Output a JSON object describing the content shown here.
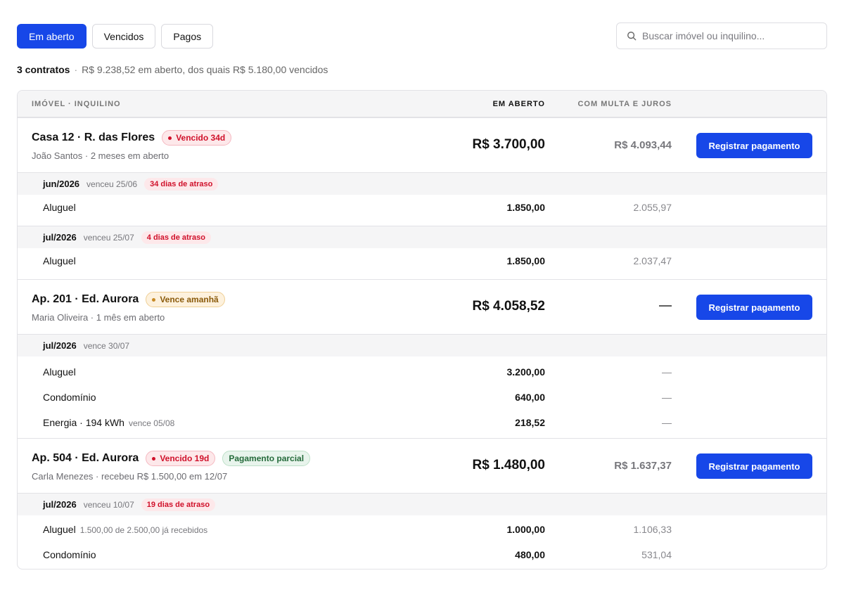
{
  "tabs": [
    {
      "label": "Em aberto",
      "active": true
    },
    {
      "label": "Vencidos",
      "active": false
    },
    {
      "label": "Pagos",
      "active": false
    }
  ],
  "search": {
    "placeholder": "Buscar imóvel ou inquilino...",
    "icon": "search-icon"
  },
  "summary": {
    "count": "3 contratos",
    "separator": "·",
    "text": "R$ 9.238,52 em aberto, dos quais R$ 5.180,00 vencidos"
  },
  "table": {
    "headers": {
      "imovel": "IMÓVEL · INQUILINO",
      "aberto": "EM ABERTO",
      "multa": "COM MULTA E JUROS"
    },
    "contracts": [
      {
        "name": "Casa 12 · R. das Flores",
        "badges": [
          "Vencido 34d"
        ],
        "subtitle": "João Santos · 2 meses em aberto",
        "amount": "R$ 3.700,00",
        "multa": "R$ 4.093,44",
        "button": "Registrar pagamento",
        "periods": [
          {
            "month": "jun/2026",
            "due": "venceu 25/06",
            "late": "34 dias de atraso",
            "lines": [
              {
                "name": "Aluguel",
                "note": "",
                "value": "1.850,00",
                "multa": "2.055,97"
              }
            ]
          },
          {
            "month": "jul/2026",
            "due": "venceu 25/07",
            "late": "4 dias de atraso",
            "lines": [
              {
                "name": "Aluguel",
                "note": "",
                "value": "1.850,00",
                "multa": "2.037,47"
              }
            ]
          }
        ]
      },
      {
        "name": "Ap. 201 · Ed. Aurora",
        "badges": [
          "Vence amanhã"
        ],
        "subtitle": "Maria Oliveira · 1 mês em aberto",
        "amount": "R$ 4.058,52",
        "multa": "—",
        "button": "Registrar pagamento",
        "periods": [
          {
            "month": "jul/2026",
            "due": "vence 30/07",
            "late": "",
            "lines": [
              {
                "name": "Aluguel",
                "note": "",
                "value": "3.200,00",
                "multa": "—"
              },
              {
                "name": "Condomínio",
                "note": "",
                "value": "640,00",
                "multa": "—"
              },
              {
                "name": "Energia · 194 kWh",
                "note": "vence 05/08",
                "value": "218,52",
                "multa": "—"
              }
            ]
          }
        ]
      },
      {
        "name": "Ap. 504 · Ed. Aurora",
        "badges": [
          "Vencido 19d",
          "Pagamento parcial"
        ],
        "subtitle": "Carla Menezes · recebeu R$ 1.500,00 em 12/07",
        "amount": "R$ 1.480,00",
        "multa": "R$ 1.637,37",
        "button": "Registrar pagamento",
        "periods": [
          {
            "month": "jul/2026",
            "due": "venceu 10/07",
            "late": "19 dias de atraso",
            "lines": [
              {
                "name": "Aluguel",
                "note": "1.500,00 de 2.500,00 já recebidos",
                "value": "1.000,00",
                "multa": "1.106,33"
              },
              {
                "name": "Condomínio",
                "note": "",
                "value": "480,00",
                "multa": "531,04"
              }
            ]
          }
        ]
      }
    ]
  },
  "colors": {
    "accent": "#1747e8",
    "overdue": "#d0102a",
    "due_soon": "#8a5a0a",
    "partial": "#256b3b"
  }
}
